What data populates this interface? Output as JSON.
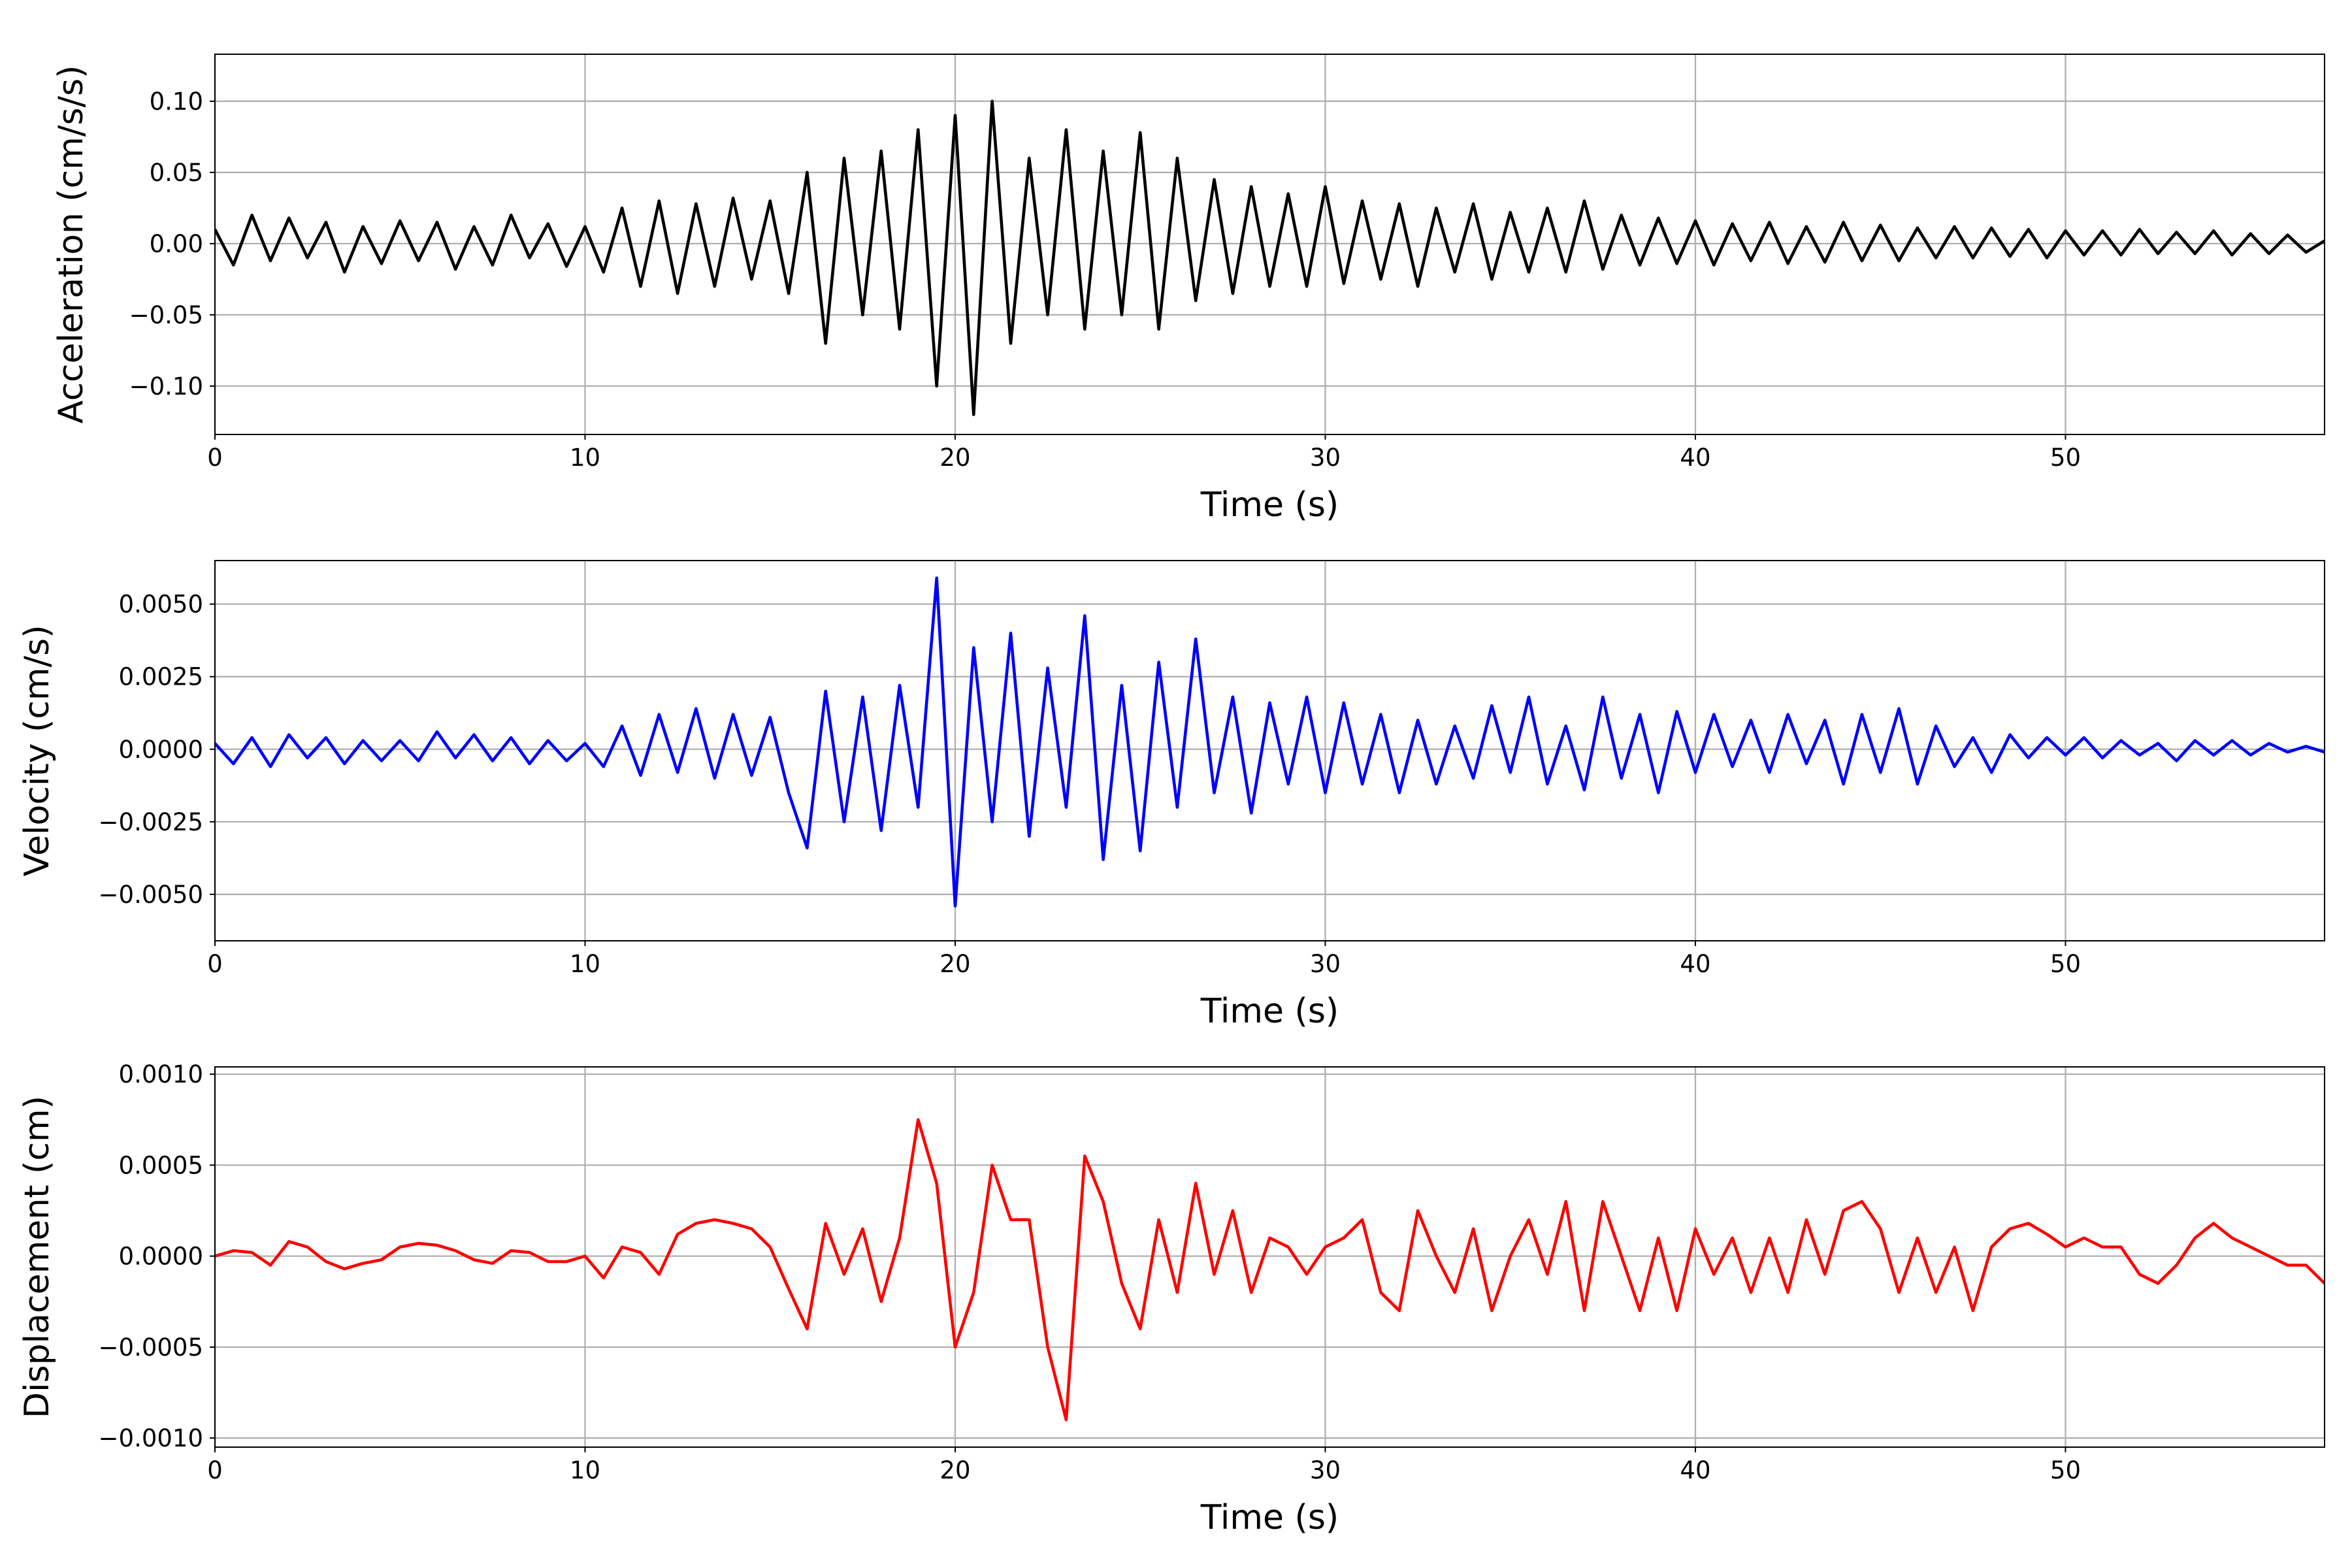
{
  "chart_data": [
    {
      "type": "line",
      "xlabel": "Time (s)",
      "ylabel": "Acceleration (cm/s/s)",
      "xlim": [
        0,
        57
      ],
      "xticks": [
        0,
        10,
        20,
        30,
        40,
        50
      ],
      "ylim": [
        -0.134,
        0.133
      ],
      "yticks": [
        {
          "value": -0.1,
          "label": "−0.10"
        },
        {
          "value": -0.05,
          "label": "−0.05"
        },
        {
          "value": 0,
          "label": "0.00"
        },
        {
          "value": 0.05,
          "label": "0.05"
        },
        {
          "value": 0.1,
          "label": "0.10"
        }
      ],
      "grid": true,
      "x": [
        0,
        0.5,
        1,
        1.5,
        2,
        2.5,
        3,
        3.5,
        4,
        4.5,
        5,
        5.5,
        6,
        6.5,
        7,
        7.5,
        8,
        8.5,
        9,
        9.5,
        10,
        10.5,
        11,
        11.5,
        12,
        12.5,
        13,
        13.5,
        14,
        14.5,
        15,
        15.5,
        16,
        16.5,
        17,
        17.5,
        18,
        18.5,
        19,
        19.5,
        20,
        20.5,
        21,
        21.5,
        22,
        22.5,
        23,
        23.5,
        24,
        24.5,
        25,
        25.5,
        26,
        26.5,
        27,
        27.5,
        28,
        28.5,
        29,
        29.5,
        30,
        30.5,
        31,
        31.5,
        32,
        32.5,
        33,
        33.5,
        34,
        34.5,
        35,
        35.5,
        36,
        36.5,
        37,
        37.5,
        38,
        38.5,
        39,
        39.5,
        40,
        40.5,
        41,
        41.5,
        42,
        42.5,
        43,
        43.5,
        44,
        44.5,
        45,
        45.5,
        46,
        46.5,
        47,
        47.5,
        48,
        48.5,
        49,
        49.5,
        50,
        50.5,
        51,
        51.5,
        52,
        52.5,
        53,
        53.5,
        54,
        54.5,
        55,
        55.5,
        56,
        56.5,
        57
      ],
      "series": [
        {
          "color": "#000000",
          "values": [
            0.01,
            -0.015,
            0.02,
            -0.012,
            0.018,
            -0.01,
            0.015,
            -0.02,
            0.012,
            -0.014,
            0.016,
            -0.012,
            0.015,
            -0.018,
            0.012,
            -0.015,
            0.02,
            -0.01,
            0.014,
            -0.016,
            0.012,
            -0.02,
            0.025,
            -0.03,
            0.03,
            -0.035,
            0.028,
            -0.03,
            0.032,
            -0.025,
            0.03,
            -0.035,
            0.05,
            -0.07,
            0.06,
            -0.05,
            0.065,
            -0.06,
            0.08,
            -0.1,
            0.09,
            -0.12,
            0.1,
            -0.07,
            0.06,
            -0.05,
            0.08,
            -0.06,
            0.065,
            -0.05,
            0.078,
            -0.06,
            0.06,
            -0.04,
            0.045,
            -0.035,
            0.04,
            -0.03,
            0.035,
            -0.03,
            0.04,
            -0.028,
            0.03,
            -0.025,
            0.028,
            -0.03,
            0.025,
            -0.02,
            0.028,
            -0.025,
            0.022,
            -0.02,
            0.025,
            -0.02,
            0.03,
            -0.018,
            0.02,
            -0.015,
            0.018,
            -0.014,
            0.016,
            -0.015,
            0.014,
            -0.012,
            0.015,
            -0.014,
            0.012,
            -0.013,
            0.015,
            -0.012,
            0.013,
            -0.012,
            0.011,
            -0.01,
            0.012,
            -0.01,
            0.011,
            -0.009,
            0.01,
            -0.01,
            0.009,
            -0.008,
            0.009,
            -0.008,
            0.01,
            -0.007,
            0.008,
            -0.007,
            0.009,
            -0.008,
            0.007,
            -0.007,
            0.006,
            -0.006,
            0.002
          ]
        }
      ]
    },
    {
      "type": "line",
      "xlabel": "Time (s)",
      "ylabel": "Velocity (cm/s)",
      "xlim": [
        0,
        57
      ],
      "xticks": [
        0,
        10,
        20,
        30,
        40,
        50
      ],
      "ylim": [
        -0.0066,
        0.0065
      ],
      "yticks": [
        {
          "value": -0.005,
          "label": "−0.0050"
        },
        {
          "value": -0.0025,
          "label": "−0.0025"
        },
        {
          "value": 0,
          "label": "0.0000"
        },
        {
          "value": 0.0025,
          "label": "0.0025"
        },
        {
          "value": 0.005,
          "label": "0.0050"
        }
      ],
      "grid": true,
      "x": [
        0,
        0.5,
        1,
        1.5,
        2,
        2.5,
        3,
        3.5,
        4,
        4.5,
        5,
        5.5,
        6,
        6.5,
        7,
        7.5,
        8,
        8.5,
        9,
        9.5,
        10,
        10.5,
        11,
        11.5,
        12,
        12.5,
        13,
        13.5,
        14,
        14.5,
        15,
        15.5,
        16,
        16.5,
        17,
        17.5,
        18,
        18.5,
        19,
        19.5,
        20,
        20.5,
        21,
        21.5,
        22,
        22.5,
        23,
        23.5,
        24,
        24.5,
        25,
        25.5,
        26,
        26.5,
        27,
        27.5,
        28,
        28.5,
        29,
        29.5,
        30,
        30.5,
        31,
        31.5,
        32,
        32.5,
        33,
        33.5,
        34,
        34.5,
        35,
        35.5,
        36,
        36.5,
        37,
        37.5,
        38,
        38.5,
        39,
        39.5,
        40,
        40.5,
        41,
        41.5,
        42,
        42.5,
        43,
        43.5,
        44,
        44.5,
        45,
        45.5,
        46,
        46.5,
        47,
        47.5,
        48,
        48.5,
        49,
        49.5,
        50,
        50.5,
        51,
        51.5,
        52,
        52.5,
        53,
        53.5,
        54,
        54.5,
        55,
        55.5,
        56,
        56.5,
        57
      ],
      "series": [
        {
          "color": "#0000ff",
          "values": [
            0.0002,
            -0.0005,
            0.0004,
            -0.0006,
            0.0005,
            -0.0003,
            0.0004,
            -0.0005,
            0.0003,
            -0.0004,
            0.0003,
            -0.0004,
            0.0006,
            -0.0003,
            0.0005,
            -0.0004,
            0.0004,
            -0.0005,
            0.0003,
            -0.0004,
            0.0002,
            -0.0006,
            0.0008,
            -0.0009,
            0.0012,
            -0.0008,
            0.0014,
            -0.001,
            0.0012,
            -0.0009,
            0.0011,
            -0.0015,
            -0.0034,
            0.002,
            -0.0025,
            0.0018,
            -0.0028,
            0.0022,
            -0.002,
            0.0059,
            -0.0054,
            0.0035,
            -0.0025,
            0.004,
            -0.003,
            0.0028,
            -0.002,
            0.0046,
            -0.0038,
            0.0022,
            -0.0035,
            0.003,
            -0.002,
            0.0038,
            -0.0015,
            0.0018,
            -0.0022,
            0.0016,
            -0.0012,
            0.0018,
            -0.0015,
            0.0016,
            -0.0012,
            0.0012,
            -0.0015,
            0.001,
            -0.0012,
            0.0008,
            -0.001,
            0.0015,
            -0.0008,
            0.0018,
            -0.0012,
            0.0008,
            -0.0014,
            0.0018,
            -0.001,
            0.0012,
            -0.0015,
            0.0013,
            -0.0008,
            0.0012,
            -0.0006,
            0.001,
            -0.0008,
            0.0012,
            -0.0005,
            0.001,
            -0.0012,
            0.0012,
            -0.0008,
            0.0014,
            -0.0012,
            0.0008,
            -0.0006,
            0.0004,
            -0.0008,
            0.0005,
            -0.0003,
            0.0004,
            -0.0002,
            0.0004,
            -0.0003,
            0.0003,
            -0.0002,
            0.0002,
            -0.0004,
            0.0003,
            -0.0002,
            0.0003,
            -0.0002,
            0.0002,
            -0.0001,
            0.0001,
            -0.0001
          ]
        }
      ]
    },
    {
      "type": "line",
      "xlabel": "Time (s)",
      "ylabel": "Displacement (cm)",
      "xlim": [
        0,
        57
      ],
      "xticks": [
        0,
        10,
        20,
        30,
        40,
        50
      ],
      "ylim": [
        -0.00105,
        0.00104
      ],
      "yticks": [
        {
          "value": -0.001,
          "label": "−0.0010"
        },
        {
          "value": -0.0005,
          "label": "−0.0005"
        },
        {
          "value": 0,
          "label": "0.0000"
        },
        {
          "value": 0.0005,
          "label": "0.0005"
        },
        {
          "value": 0.001,
          "label": "0.0010"
        }
      ],
      "grid": true,
      "x": [
        0,
        0.5,
        1,
        1.5,
        2,
        2.5,
        3,
        3.5,
        4,
        4.5,
        5,
        5.5,
        6,
        6.5,
        7,
        7.5,
        8,
        8.5,
        9,
        9.5,
        10,
        10.5,
        11,
        11.5,
        12,
        12.5,
        13,
        13.5,
        14,
        14.5,
        15,
        15.5,
        16,
        16.5,
        17,
        17.5,
        18,
        18.5,
        19,
        19.5,
        20,
        20.5,
        21,
        21.5,
        22,
        22.5,
        23,
        23.5,
        24,
        24.5,
        25,
        25.5,
        26,
        26.5,
        27,
        27.5,
        28,
        28.5,
        29,
        29.5,
        30,
        30.5,
        31,
        31.5,
        32,
        32.5,
        33,
        33.5,
        34,
        34.5,
        35,
        35.5,
        36,
        36.5,
        37,
        37.5,
        38,
        38.5,
        39,
        39.5,
        40,
        40.5,
        41,
        41.5,
        42,
        42.5,
        43,
        43.5,
        44,
        44.5,
        45,
        45.5,
        46,
        46.5,
        47,
        47.5,
        48,
        48.5,
        49,
        49.5,
        50,
        50.5,
        51,
        51.5,
        52,
        52.5,
        53,
        53.5,
        54,
        54.5,
        55,
        55.5,
        56,
        56.5,
        57
      ],
      "series": [
        {
          "color": "#ff0000",
          "values": [
            0,
            3e-05,
            2e-05,
            -5e-05,
            8e-05,
            5e-05,
            -3e-05,
            -7e-05,
            -4e-05,
            -2e-05,
            5e-05,
            7e-05,
            6e-05,
            3e-05,
            -2e-05,
            -4e-05,
            3e-05,
            2e-05,
            -3e-05,
            -3e-05,
            0,
            -0.00012,
            5e-05,
            2e-05,
            -0.0001,
            0.00012,
            0.00018,
            0.0002,
            0.00018,
            0.00015,
            5e-05,
            -0.00018,
            -0.0004,
            0.00018,
            -0.0001,
            0.00015,
            -0.00025,
            0.0001,
            0.00075,
            0.0004,
            -0.0005,
            -0.0002,
            0.0005,
            0.0002,
            0.0002,
            -0.0005,
            -0.0009,
            0.00055,
            0.0003,
            -0.00015,
            -0.0004,
            0.0002,
            -0.0002,
            0.0004,
            -0.0001,
            0.00025,
            -0.0002,
            0.0001,
            5e-05,
            -0.0001,
            5e-05,
            0.0001,
            0.0002,
            -0.0002,
            -0.0003,
            0.00025,
            0,
            -0.0002,
            0.00015,
            -0.0003,
            0,
            0.0002,
            -0.0001,
            0.0003,
            -0.0003,
            0.0003,
            0,
            -0.0003,
            0.0001,
            -0.0003,
            0.00015,
            -0.0001,
            0.0001,
            -0.0002,
            0.0001,
            -0.0002,
            0.0002,
            -0.0001,
            0.00025,
            0.0003,
            0.00015,
            -0.0002,
            0.0001,
            -0.0002,
            5e-05,
            -0.0003,
            5e-05,
            0.00015,
            0.00018,
            0.00012,
            5e-05,
            0.0001,
            5e-05,
            5e-05,
            -0.0001,
            -0.00015,
            -5e-05,
            0.0001,
            0.00018,
            0.0001,
            5e-05,
            0,
            -5e-05,
            -5e-05,
            -0.00015
          ]
        }
      ]
    }
  ]
}
